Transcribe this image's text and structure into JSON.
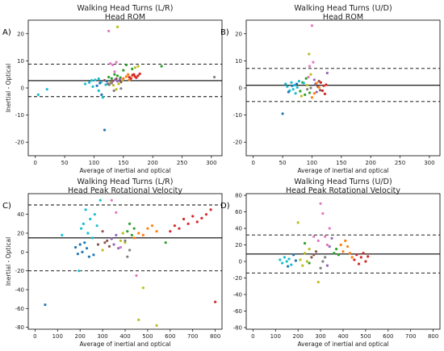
{
  "chart_data": [
    {
      "type": "scatter",
      "panel_label": "A)",
      "title_lines": [
        "Walking Head Turns (L/R)",
        "Head ROM"
      ],
      "xlabel": "Average of inertial and optical",
      "ylabel": "Inertial - Optical",
      "xlim": [
        -12,
        318
      ],
      "ylim": [
        -25,
        25
      ],
      "xticks": [
        0,
        50,
        100,
        150,
        200,
        250,
        300
      ],
      "yticks": [
        -20,
        -10,
        0,
        10,
        20
      ],
      "mean_line": 2.7,
      "upper_loa": 8.8,
      "lower_loa": -3.2,
      "grid": false,
      "points": [
        [
          5,
          -2.5,
          "#17becf"
        ],
        [
          20,
          -0.5,
          "#17becf"
        ],
        [
          85,
          1.5,
          "#17becf"
        ],
        [
          92,
          2.0,
          "#17becf"
        ],
        [
          98,
          0.5,
          "#17becf"
        ],
        [
          102,
          3.0,
          "#17becf"
        ],
        [
          108,
          -1.0,
          "#17becf"
        ],
        [
          112,
          2.2,
          "#17becf"
        ],
        [
          115,
          -3.5,
          "#17becf"
        ],
        [
          120,
          1.2,
          "#17becf"
        ],
        [
          118,
          -15.5,
          "#1f77b4"
        ],
        [
          113,
          -2.5,
          "#1f77b4"
        ],
        [
          105,
          0.8,
          "#1f77b4"
        ],
        [
          122,
          2.5,
          "#1f77b4"
        ],
        [
          110,
          1.8,
          "#1f77b4"
        ],
        [
          125,
          4.0,
          "#2ca02c"
        ],
        [
          130,
          3.5,
          "#2ca02c"
        ],
        [
          135,
          5.0,
          "#2ca02c"
        ],
        [
          140,
          4.5,
          "#2ca02c"
        ],
        [
          145,
          3.8,
          "#2ca02c"
        ],
        [
          150,
          6.5,
          "#2ca02c"
        ],
        [
          155,
          8.5,
          "#2ca02c"
        ],
        [
          165,
          7.0,
          "#2ca02c"
        ],
        [
          170,
          7.5,
          "#bcbd22"
        ],
        [
          175,
          8.0,
          "#bcbd22"
        ],
        [
          128,
          2.0,
          "#bcbd22"
        ],
        [
          133,
          1.0,
          "#bcbd22"
        ],
        [
          138,
          -0.5,
          "#bcbd22"
        ],
        [
          142,
          1.5,
          "#bcbd22"
        ],
        [
          148,
          2.8,
          "#bcbd22"
        ],
        [
          125,
          21.0,
          "#e377c2"
        ],
        [
          128,
          9.0,
          "#e377c2"
        ],
        [
          132,
          8.5,
          "#e377c2"
        ],
        [
          135,
          6.0,
          "#e377c2"
        ],
        [
          138,
          9.5,
          "#e377c2"
        ],
        [
          140,
          22.5,
          "#bcbd22"
        ],
        [
          136,
          3.0,
          "#9467bd"
        ],
        [
          140,
          2.5,
          "#9467bd"
        ],
        [
          144,
          3.2,
          "#9467bd"
        ],
        [
          130,
          1.8,
          "#9467bd"
        ],
        [
          118,
          2.8,
          "#8c564b"
        ],
        [
          124,
          1.5,
          "#8c564b"
        ],
        [
          132,
          2.6,
          "#8c564b"
        ],
        [
          138,
          3.4,
          "#8c564b"
        ],
        [
          146,
          2.2,
          "#8c564b"
        ],
        [
          150,
          3.5,
          "#ff7f0e"
        ],
        [
          155,
          4.2,
          "#ff7f0e"
        ],
        [
          160,
          3.0,
          "#ff7f0e"
        ],
        [
          165,
          4.5,
          "#ff7f0e"
        ],
        [
          158,
          5.0,
          "#ff7f0e"
        ],
        [
          160,
          4.0,
          "#d62728"
        ],
        [
          163,
          3.5,
          "#d62728"
        ],
        [
          166,
          4.8,
          "#d62728"
        ],
        [
          170,
          4.2,
          "#d62728"
        ],
        [
          172,
          3.8,
          "#d62728"
        ],
        [
          175,
          4.5,
          "#d62728"
        ],
        [
          178,
          5.2,
          "#d62728"
        ],
        [
          168,
          5.0,
          "#d62728"
        ],
        [
          215,
          8.0,
          "#2ca02c"
        ],
        [
          305,
          4.0,
          "#7f7f7f"
        ],
        [
          126,
          1.2,
          "#7f7f7f"
        ],
        [
          134,
          -1.0,
          "#7f7f7f"
        ],
        [
          146,
          -0.2,
          "#7f7f7f"
        ],
        [
          108,
          3.4,
          "#17becf"
        ],
        [
          96,
          2.8,
          "#17becf"
        ]
      ]
    },
    {
      "type": "scatter",
      "panel_label": "B)",
      "title_lines": [
        "Walking Head Turns (U/D)",
        "Head ROM"
      ],
      "xlabel": "Average of inertial and optical",
      "ylabel": "",
      "xlim": [
        -12,
        318
      ],
      "ylim": [
        -25,
        25
      ],
      "xticks": [
        0,
        50,
        100,
        150,
        200,
        250,
        300
      ],
      "yticks": [
        -20,
        -10,
        0,
        10,
        20
      ],
      "mean_line": 1.0,
      "upper_loa": 7.2,
      "lower_loa": -5.0,
      "grid": false,
      "points": [
        [
          50,
          -9.5,
          "#1f77b4"
        ],
        [
          55,
          1.5,
          "#17becf"
        ],
        [
          58,
          0.5,
          "#17becf"
        ],
        [
          62,
          -1.0,
          "#17becf"
        ],
        [
          65,
          2.0,
          "#17becf"
        ],
        [
          68,
          -0.5,
          "#17becf"
        ],
        [
          70,
          1.0,
          "#17becf"
        ],
        [
          72,
          -2.0,
          "#17becf"
        ],
        [
          75,
          0.2,
          "#17becf"
        ],
        [
          78,
          2.5,
          "#17becf"
        ],
        [
          60,
          -1.5,
          "#1f77b4"
        ],
        [
          66,
          0.8,
          "#1f77b4"
        ],
        [
          74,
          1.5,
          "#1f77b4"
        ],
        [
          80,
          -1.2,
          "#2ca02c"
        ],
        [
          84,
          2.0,
          "#2ca02c"
        ],
        [
          88,
          -2.5,
          "#2ca02c"
        ],
        [
          90,
          3.5,
          "#2ca02c"
        ],
        [
          92,
          1.0,
          "#bcbd22"
        ],
        [
          95,
          12.5,
          "#bcbd22"
        ],
        [
          98,
          5.0,
          "#bcbd22"
        ],
        [
          100,
          23.0,
          "#e377c2"
        ],
        [
          96,
          8.0,
          "#e377c2"
        ],
        [
          102,
          9.5,
          "#e377c2"
        ],
        [
          94,
          4.0,
          "#e377c2"
        ],
        [
          104,
          3.0,
          "#9467bd"
        ],
        [
          106,
          1.5,
          "#9467bd"
        ],
        [
          108,
          -1.5,
          "#9467bd"
        ],
        [
          110,
          0.5,
          "#8c564b"
        ],
        [
          112,
          2.5,
          "#8c564b"
        ],
        [
          114,
          -0.8,
          "#8c564b"
        ],
        [
          100,
          -3.5,
          "#ff7f0e"
        ],
        [
          104,
          -2.0,
          "#ff7f0e"
        ],
        [
          108,
          1.8,
          "#ff7f0e"
        ],
        [
          112,
          0.2,
          "#ff7f0e"
        ],
        [
          115,
          2.0,
          "#d62728"
        ],
        [
          118,
          -1.0,
          "#d62728"
        ],
        [
          120,
          0.8,
          "#d62728"
        ],
        [
          122,
          -2.2,
          "#d62728"
        ],
        [
          124,
          1.2,
          "#d62728"
        ],
        [
          126,
          5.5,
          "#9467bd"
        ],
        [
          92,
          -0.5,
          "#7f7f7f"
        ],
        [
          98,
          0.0,
          "#7f7f7f"
        ],
        [
          86,
          1.8,
          "#17becf"
        ],
        [
          82,
          -3.0,
          "#bcbd22"
        ],
        [
          96,
          -1.8,
          "#2ca02c"
        ]
      ]
    },
    {
      "type": "scatter",
      "panel_label": "C)",
      "title_lines": [
        "Walking Head Turns (L/R)",
        "Head Peak Rotational Velocity"
      ],
      "xlabel": "Average of inertial and optical",
      "ylabel": "Inertial - Optical",
      "xlim": [
        -30,
        830
      ],
      "ylim": [
        -82,
        62
      ],
      "xticks": [
        0,
        100,
        200,
        300,
        400,
        500,
        600,
        700,
        800
      ],
      "yticks": [
        -80,
        -60,
        -40,
        -20,
        0,
        20,
        40
      ],
      "mean_line": 15.0,
      "upper_loa": 50.0,
      "lower_loa": -20.0,
      "grid": false,
      "points": [
        [
          45,
          -56,
          "#1f77b4"
        ],
        [
          120,
          18,
          "#17becf"
        ],
        [
          180,
          5,
          "#1f77b4"
        ],
        [
          190,
          -2,
          "#1f77b4"
        ],
        [
          200,
          8,
          "#1f77b4"
        ],
        [
          210,
          0,
          "#1f77b4"
        ],
        [
          220,
          10,
          "#1f77b4"
        ],
        [
          230,
          4,
          "#1f77b4"
        ],
        [
          240,
          -5,
          "#1f77b4"
        ],
        [
          195,
          -20,
          "#17becf"
        ],
        [
          205,
          25,
          "#17becf"
        ],
        [
          215,
          30,
          "#17becf"
        ],
        [
          225,
          45,
          "#17becf"
        ],
        [
          235,
          20,
          "#17becf"
        ],
        [
          245,
          35,
          "#17becf"
        ],
        [
          255,
          15,
          "#17becf"
        ],
        [
          265,
          40,
          "#17becf"
        ],
        [
          275,
          28,
          "#17becf"
        ],
        [
          290,
          55,
          "#17becf"
        ],
        [
          300,
          22,
          "#8c564b"
        ],
        [
          310,
          10,
          "#8c564b"
        ],
        [
          320,
          12,
          "#8c564b"
        ],
        [
          330,
          6,
          "#8c564b"
        ],
        [
          340,
          14,
          "#9467bd"
        ],
        [
          350,
          8,
          "#9467bd"
        ],
        [
          360,
          18,
          "#9467bd"
        ],
        [
          370,
          4,
          "#9467bd"
        ],
        [
          380,
          12,
          "#bcbd22"
        ],
        [
          390,
          20,
          "#bcbd22"
        ],
        [
          400,
          10,
          "#bcbd22"
        ],
        [
          410,
          22,
          "#2ca02c"
        ],
        [
          420,
          30,
          "#2ca02c"
        ],
        [
          430,
          18,
          "#2ca02c"
        ],
        [
          440,
          25,
          "#2ca02c"
        ],
        [
          450,
          -25,
          "#e377c2"
        ],
        [
          340,
          55,
          "#e377c2"
        ],
        [
          360,
          42,
          "#e377c2"
        ],
        [
          380,
          5,
          "#e377c2"
        ],
        [
          400,
          12,
          "#7f7f7f"
        ],
        [
          410,
          -5,
          "#7f7f7f"
        ],
        [
          420,
          2,
          "#7f7f7f"
        ],
        [
          440,
          15,
          "#ff7f0e"
        ],
        [
          460,
          20,
          "#ff7f0e"
        ],
        [
          480,
          18,
          "#ff7f0e"
        ],
        [
          500,
          25,
          "#ff7f0e"
        ],
        [
          520,
          28,
          "#ff7f0e"
        ],
        [
          540,
          22,
          "#ff7f0e"
        ],
        [
          460,
          -72,
          "#bcbd22"
        ],
        [
          540,
          -78,
          "#bcbd22"
        ],
        [
          480,
          -38,
          "#bcbd22"
        ],
        [
          600,
          22,
          "#d62728"
        ],
        [
          620,
          28,
          "#d62728"
        ],
        [
          640,
          25,
          "#d62728"
        ],
        [
          660,
          35,
          "#d62728"
        ],
        [
          680,
          30,
          "#d62728"
        ],
        [
          700,
          38,
          "#d62728"
        ],
        [
          720,
          32,
          "#d62728"
        ],
        [
          740,
          36,
          "#d62728"
        ],
        [
          760,
          40,
          "#d62728"
        ],
        [
          780,
          45,
          "#d62728"
        ],
        [
          800,
          -53,
          "#d62728"
        ],
        [
          580,
          10,
          "#2ca02c"
        ],
        [
          300,
          2,
          "#bcbd22"
        ],
        [
          280,
          8,
          "#8c564b"
        ],
        [
          260,
          -3,
          "#1f77b4"
        ]
      ]
    },
    {
      "type": "scatter",
      "panel_label": "D)",
      "title_lines": [
        "Walking Head Turns (U/D)",
        "Head Peak Rotational Velocity"
      ],
      "xlabel": "Average of inertial and optical",
      "ylabel": "",
      "xlim": [
        -30,
        830
      ],
      "ylim": [
        -82,
        82
      ],
      "xticks": [
        0,
        100,
        200,
        300,
        400,
        500,
        600,
        700,
        800
      ],
      "yticks": [
        -80,
        -60,
        -40,
        -20,
        0,
        20,
        40,
        60,
        80
      ],
      "mean_line": 9.0,
      "upper_loa": 32.0,
      "lower_loa": -14.0,
      "grid": false,
      "points": [
        [
          120,
          2,
          "#17becf"
        ],
        [
          130,
          -2,
          "#17becf"
        ],
        [
          140,
          5,
          "#17becf"
        ],
        [
          150,
          0,
          "#17becf"
        ],
        [
          160,
          3,
          "#17becf"
        ],
        [
          170,
          -4,
          "#17becf"
        ],
        [
          180,
          8,
          "#1f77b4"
        ],
        [
          190,
          1,
          "#1f77b4"
        ],
        [
          155,
          -6,
          "#1f77b4"
        ],
        [
          200,
          47,
          "#bcbd22"
        ],
        [
          210,
          2,
          "#bcbd22"
        ],
        [
          220,
          -5,
          "#bcbd22"
        ],
        [
          230,
          10,
          "#bcbd22"
        ],
        [
          240,
          0,
          "#bcbd22"
        ],
        [
          250,
          15,
          "#bcbd22"
        ],
        [
          260,
          5,
          "#8c564b"
        ],
        [
          270,
          8,
          "#8c564b"
        ],
        [
          280,
          12,
          "#8c564b"
        ],
        [
          290,
          25,
          "#e377c2"
        ],
        [
          300,
          70,
          "#e377c2"
        ],
        [
          310,
          58,
          "#e377c2"
        ],
        [
          320,
          30,
          "#e377c2"
        ],
        [
          330,
          20,
          "#e377c2"
        ],
        [
          340,
          18,
          "#9467bd"
        ],
        [
          350,
          28,
          "#9467bd"
        ],
        [
          290,
          -25,
          "#bcbd22"
        ],
        [
          300,
          -8,
          "#7f7f7f"
        ],
        [
          310,
          0,
          "#7f7f7f"
        ],
        [
          320,
          5,
          "#7f7f7f"
        ],
        [
          360,
          10,
          "#2ca02c"
        ],
        [
          370,
          15,
          "#2ca02c"
        ],
        [
          380,
          8,
          "#2ca02c"
        ],
        [
          390,
          20,
          "#ff7f0e"
        ],
        [
          400,
          12,
          "#ff7f0e"
        ],
        [
          410,
          25,
          "#ff7f0e"
        ],
        [
          420,
          18,
          "#ff7f0e"
        ],
        [
          430,
          10,
          "#ff7f0e"
        ],
        [
          440,
          5,
          "#ff7f0e"
        ],
        [
          450,
          2,
          "#d62728"
        ],
        [
          460,
          8,
          "#d62728"
        ],
        [
          470,
          -3,
          "#d62728"
        ],
        [
          480,
          5,
          "#d62728"
        ],
        [
          490,
          10,
          "#d62728"
        ],
        [
          500,
          0,
          "#d62728"
        ],
        [
          510,
          6,
          "#d62728"
        ],
        [
          340,
          40,
          "#e377c2"
        ],
        [
          270,
          30,
          "#e377c2"
        ],
        [
          250,
          -2,
          "#2ca02c"
        ],
        [
          230,
          22,
          "#2ca02c"
        ],
        [
          330,
          -5,
          "#9467bd"
        ]
      ]
    }
  ]
}
